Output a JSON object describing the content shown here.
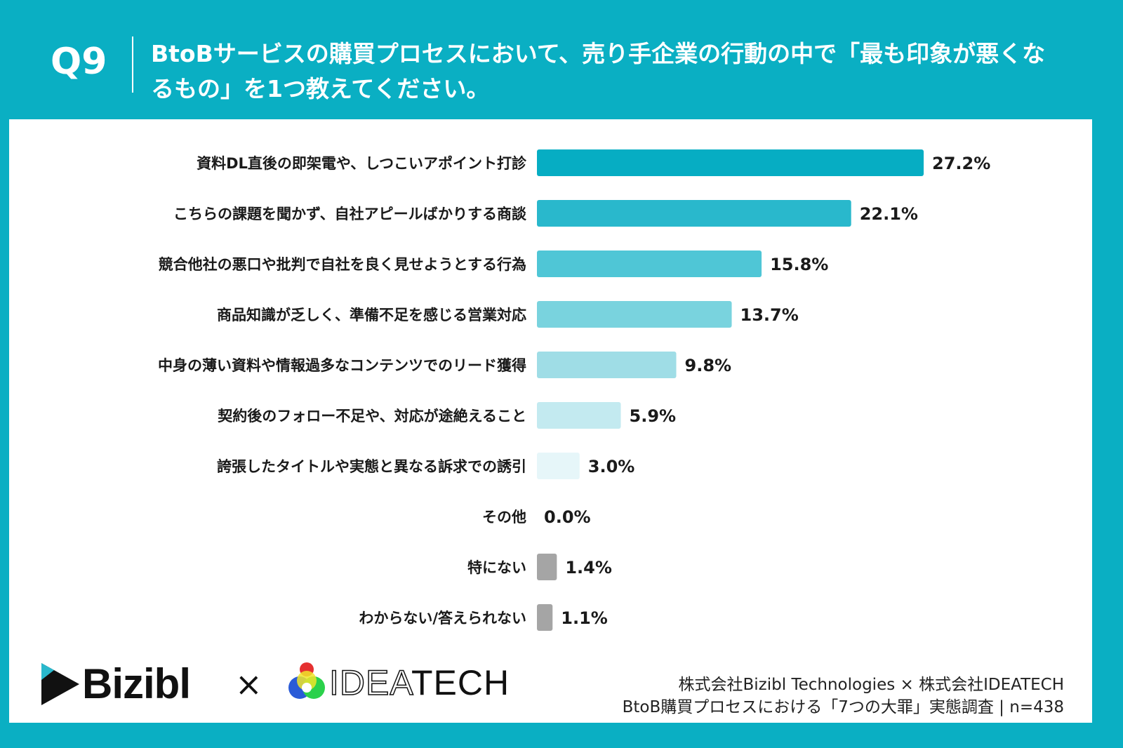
{
  "header": {
    "question_no": "Q9",
    "title": "BtoBサービスの購買プロセスにおいて、売り手企業の行動の中で「最も印象が悪くなるもの」を1つ教えてください。"
  },
  "colors": {
    "background": "#0aafc3",
    "other_bar": "#a5a5a5"
  },
  "chart_data": {
    "type": "bar",
    "orientation": "horizontal",
    "grid": false,
    "categories": [
      "資料DL直後の即架電や、しつこいアポイント打診",
      "こちらの課題を聞かず、自社アピールばかりする商談",
      "競合他社の悪口や批判で自社を良く見せようとする行為",
      "商品知識が乏しく、準備不足を感じる営業対応",
      "中身の薄い資料や情報過多なコンテンツでのリード獲得",
      "契約後のフォロー不足や、対応が途絶えること",
      "誇張したタイトルや実態と異なる訴求での誘引",
      "その他",
      "特にない",
      "わからない/答えられない"
    ],
    "values": [
      27.2,
      22.1,
      15.8,
      13.7,
      9.8,
      5.9,
      3.0,
      0.0,
      1.4,
      1.1
    ],
    "labels": [
      "27.2%",
      "22.1%",
      "15.8%",
      "13.7%",
      "9.8%",
      "5.9%",
      "3.0%",
      "0.0%",
      "1.4%",
      "1.1%"
    ],
    "bar_colors": [
      "#06adc3",
      "#29b8cc",
      "#4fc6d6",
      "#79d3de",
      "#9fdde6",
      "#c3eaf0",
      "#e6f6f9",
      "#a5a5a5",
      "#a5a5a5",
      "#a5a5a5"
    ],
    "unit": "%"
  },
  "footer": {
    "logo_bizibl": "Bizibl",
    "times": "×",
    "logo_ideatech": "IDEATECH",
    "credit_line1": "株式会社Bizibl Technologies × 株式会社IDEATECH",
    "credit_line2": "BtoB購買プロセスにおける「7つの大罪」実態調査 | n=438"
  }
}
